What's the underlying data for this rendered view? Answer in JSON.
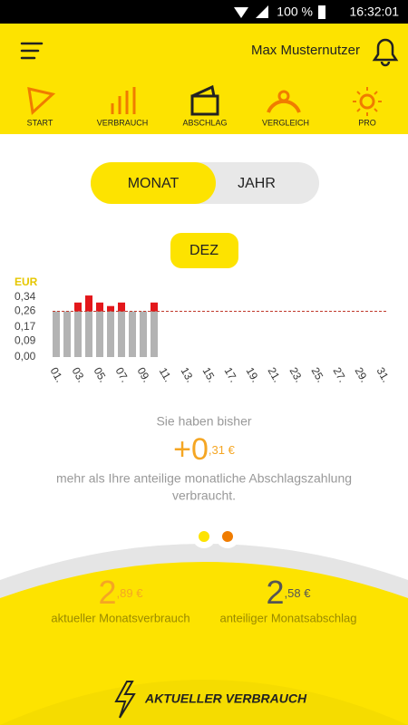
{
  "status_bar": {
    "battery": "100 %",
    "time": "16:32:01"
  },
  "header": {
    "user": "Max Musternutzer"
  },
  "nav": [
    "START",
    "VERBRAUCH",
    "ABSCHLAG",
    "VERGLEICH",
    "PRO"
  ],
  "toggle": [
    "MONAT",
    "JAHR"
  ],
  "month": "DEZ",
  "chart_data": {
    "type": "bar",
    "stacked": true,
    "ylabel": "EUR",
    "categories": [
      "01.",
      null,
      "03.",
      null,
      "05.",
      null,
      "07.",
      null,
      "09.",
      null,
      "11.",
      null,
      "13.",
      null,
      "15.",
      null,
      "17.",
      null,
      "19.",
      null,
      "21.",
      null,
      "23.",
      null,
      "25.",
      null,
      "27.",
      null,
      "29.",
      null,
      "31."
    ],
    "series": [
      {
        "color": "#b3b3b3",
        "values": [
          0.26,
          0.26,
          0.26,
          0.26,
          0.26,
          0.26,
          0.26,
          0.26,
          0.26,
          0.26,
          null,
          null,
          null,
          null,
          null,
          null,
          null,
          null,
          null,
          null,
          null,
          null,
          null,
          null,
          null,
          null,
          null,
          null,
          null,
          null,
          null
        ]
      },
      {
        "color": "#e3171b",
        "values": [
          0,
          0,
          0.05,
          0.09,
          0.05,
          0.03,
          0.05,
          0,
          0,
          0.05,
          null,
          null,
          null,
          null,
          null,
          null,
          null,
          null,
          null,
          null,
          null,
          null,
          null,
          null,
          null,
          null,
          null,
          null,
          null,
          null,
          null
        ]
      }
    ],
    "reference_line": 0.26,
    "reference_color": "#c0392b",
    "ylim": [
      0,
      0.34
    ],
    "yticks": [
      {
        "value": 0,
        "label": "0,00"
      },
      {
        "value": 0.09,
        "label": "0,09"
      },
      {
        "value": 0.17,
        "label": "0,17"
      },
      {
        "value": 0.26,
        "label": "0,26"
      },
      {
        "value": 0.34,
        "label": "0,34"
      }
    ]
  },
  "summary": {
    "intro": "Sie haben bisher",
    "amount_main": "+0",
    "amount_cents": ",31 €",
    "line1": "mehr als Ihre anteilige monatliche Abschlagszahlung",
    "line2": "verbraucht."
  },
  "stats": [
    {
      "main": "2",
      "cents": ",89 €",
      "label": "aktueller Monatsverbrauch"
    },
    {
      "main": "2",
      "cents": ",58 €",
      "label": "anteiliger Monatsabschlag"
    }
  ],
  "cta": "AKTUELLER VERBRAUCH"
}
